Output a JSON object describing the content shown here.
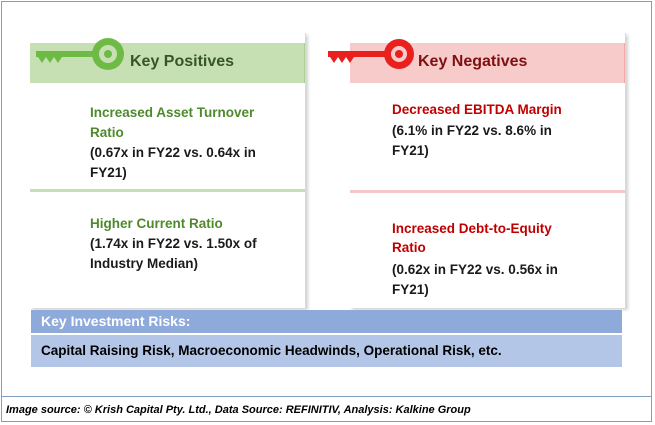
{
  "positives": {
    "header": "Key Positives",
    "items": [
      {
        "title_line1": "Increased Asset Turnover",
        "title_line2": "Ratio",
        "desc_line1": "(0.67x in FY22 vs. 0.64x in",
        "desc_line2": "FY21)"
      },
      {
        "title_line1": "Higher Current Ratio",
        "desc_line1": "(1.74x in FY22 vs. 1.50x of",
        "desc_line2": "Industry Median)"
      }
    ]
  },
  "negatives": {
    "header": "Key Negatives",
    "items": [
      {
        "title_line1": "Decreased EBITDA Margin",
        "desc_line1": "(6.1% in FY22 vs. 8.6% in",
        "desc_line2": "FY21)"
      },
      {
        "title_line1": "Increased Debt-to-Equity",
        "title_line2": "Ratio",
        "desc_line1": "(0.62x in FY22 vs. 0.56x in",
        "desc_line2": "FY21)"
      }
    ]
  },
  "risks": {
    "title": "Key Investment Risks:",
    "text": "Capital Raising Risk, Macroeconomic Headwinds, Operational Risk, etc."
  },
  "footer": "Image source: © Krish Capital Pty. Ltd., Data Source: REFINITIV, Analysis: Kalkine Group",
  "colors": {
    "positive_key": "#6dbb45",
    "negative_key": "#e8201e"
  }
}
